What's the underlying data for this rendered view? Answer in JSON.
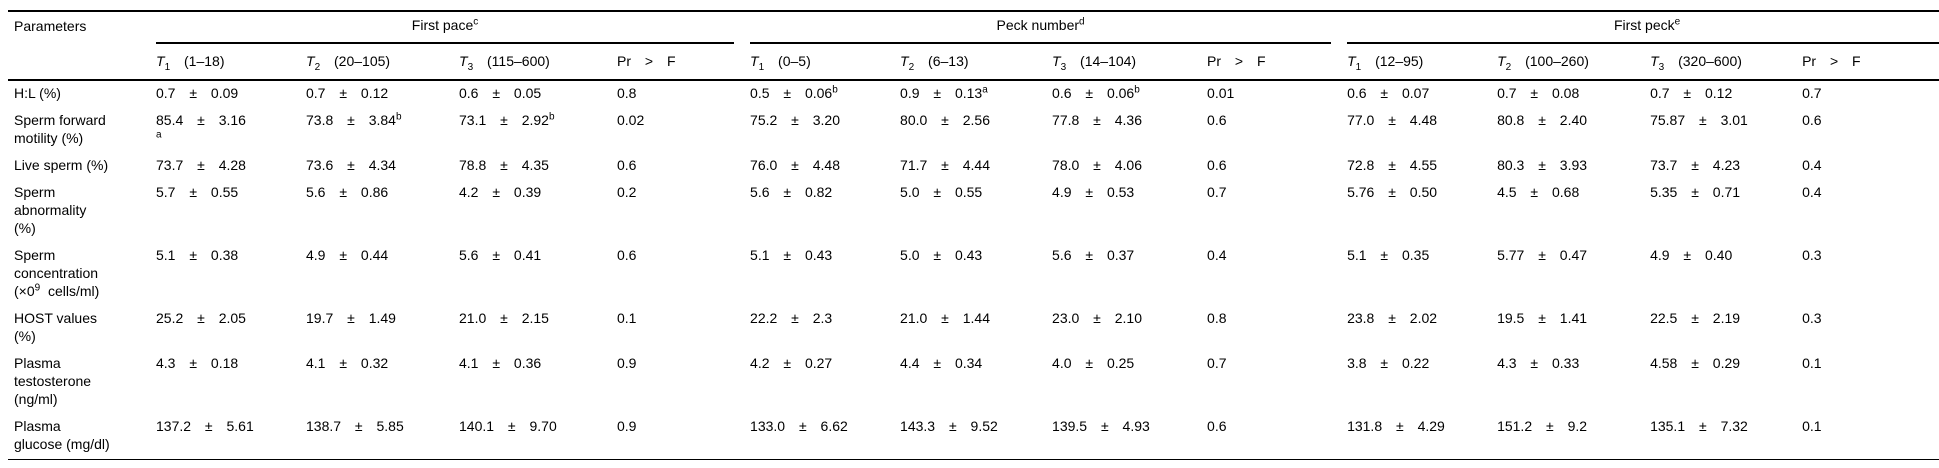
{
  "table": {
    "params_header": "Parameters",
    "groups": [
      {
        "label": "First pace{^c}",
        "cols": [
          "{i:T}{_1} (1–18)",
          "{i:T}{_2} (20–105)",
          "{i:T}{_3} (115–600)",
          "Pr > F"
        ]
      },
      {
        "label": "Peck number{^d}",
        "cols": [
          "{i:T}{_1} (0–5)",
          "{i:T}{_2} (6–13)",
          "{i:T}{_3} (14–104)",
          "Pr > F"
        ]
      },
      {
        "label": "First peck{^e}",
        "cols": [
          "{i:T}{_1} (12–95)",
          "{i:T}{_2} (100–260)",
          "{i:T}{_3} (320–600)",
          "Pr > F"
        ]
      }
    ],
    "rows": [
      {
        "label": "H:L (%)",
        "values": [
          "0.7 ± 0.09",
          "0.7 ± 0.12",
          "0.6 ± 0.05",
          "0.8",
          "0.5 ± 0.06{^b}",
          "0.9 ± 0.13{^a}",
          "0.6 ± 0.06{^b}",
          "0.01",
          "0.6 ± 0.07",
          "0.7 ± 0.08",
          "0.7 ± 0.12",
          "0.7"
        ]
      },
      {
        "label": "Sperm forward{br}motility (%)",
        "values": [
          "85.4 ± 3.16{br}{^a}",
          "73.8 ± 3.84{^b}",
          "73.1 ± 2.92{^b}",
          "0.02",
          "75.2 ± 3.20",
          "80.0 ± 2.56",
          "77.8 ± 4.36",
          "0.6",
          "77.0 ± 4.48",
          "80.8 ± 2.40",
          "75.87 ± 3.01",
          "0.6"
        ]
      },
      {
        "label": "Live sperm (%)",
        "values": [
          "73.7 ± 4.28",
          "73.6 ± 4.34",
          "78.8 ± 4.35",
          "0.6",
          "76.0 ± 4.48",
          "71.7 ± 4.44",
          "78.0 ± 4.06",
          "0.6",
          "72.8 ± 4.55",
          "80.3 ± 3.93",
          "73.7 ± 4.23",
          "0.4"
        ]
      },
      {
        "label": "Sperm{br}abnormality{br}(%)",
        "values": [
          "5.7 ± 0.55",
          "5.6 ± 0.86",
          "4.2 ± 0.39",
          "0.2",
          "5.6 ± 0.82",
          "5.0 ± 0.55",
          "4.9 ± 0.53",
          "0.7",
          "5.76 ± 0.50",
          "4.5 ± 0.68",
          "5.35 ± 0.71",
          "0.4"
        ]
      },
      {
        "label": "Sperm{br}concentration{br}(×0{^9}  cells/ml)",
        "values": [
          "5.1 ± 0.38",
          "4.9 ± 0.44",
          "5.6 ± 0.41",
          "0.6",
          "5.1 ± 0.43",
          "5.0 ± 0.43",
          "5.6 ± 0.37",
          "0.4",
          "5.1 ± 0.35",
          "5.77 ± 0.47",
          "4.9 ± 0.40",
          "0.3"
        ]
      },
      {
        "label": "HOST values{br}(%)",
        "values": [
          "25.2 ± 2.05",
          "19.7 ± 1.49",
          "21.0 ± 2.15",
          "0.1",
          "22.2 ± 2.3",
          "21.0 ± 1.44",
          "23.0 ± 2.10",
          "0.8",
          "23.8 ± 2.02",
          "19.5 ± 1.41",
          "22.5 ± 2.19",
          "0.3"
        ]
      },
      {
        "label": "Plasma{br}testosterone{br}(ng/ml)",
        "values": [
          "4.3 ± 0.18",
          "4.1 ± 0.32",
          "4.1 ± 0.36",
          "0.9",
          "4.2 ± 0.27",
          "4.4 ± 0.34",
          "4.0 ± 0.25",
          "0.7",
          "3.8 ± 0.22",
          "4.3 ± 0.33",
          "4.58 ± 0.29",
          "0.1"
        ]
      },
      {
        "label": "Plasma{br}glucose (mg/dl)",
        "values": [
          "137.2 ± 5.61",
          "138.7 ± 5.85",
          "140.1 ± 9.70",
          "0.9",
          "133.0 ± 6.62",
          "143.3 ± 9.52",
          "139.5 ± 4.93",
          "0.6",
          "131.8 ± 4.29",
          "151.2 ± 9.2",
          "135.1 ± 7.32",
          "0.1"
        ]
      }
    ]
  }
}
